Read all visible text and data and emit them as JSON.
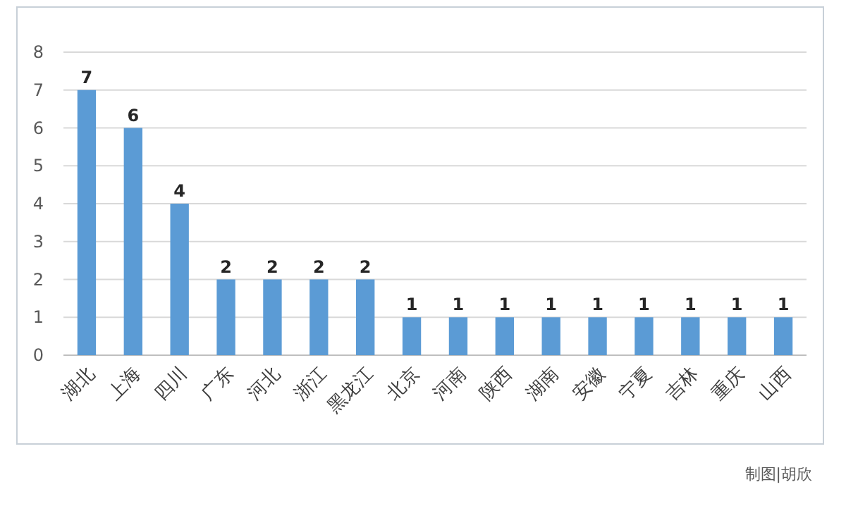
{
  "chart_data": {
    "type": "bar",
    "categories": [
      "湖北",
      "上海",
      "四川",
      "广东",
      "河北",
      "浙江",
      "黑龙江",
      "北京",
      "河南",
      "陕西",
      "湖南",
      "安徽",
      "宁夏",
      "吉林",
      "重庆",
      "山西"
    ],
    "values": [
      7,
      6,
      4,
      2,
      2,
      2,
      2,
      1,
      1,
      1,
      1,
      1,
      1,
      1,
      1,
      1
    ],
    "color": "#5b9bd5",
    "ylim": [
      0,
      8
    ],
    "yticks": [
      0,
      1,
      2,
      3,
      4,
      5,
      6,
      7,
      8
    ],
    "grid": "y",
    "data_labels": true,
    "annotations": [
      "制图|胡欣"
    ]
  }
}
